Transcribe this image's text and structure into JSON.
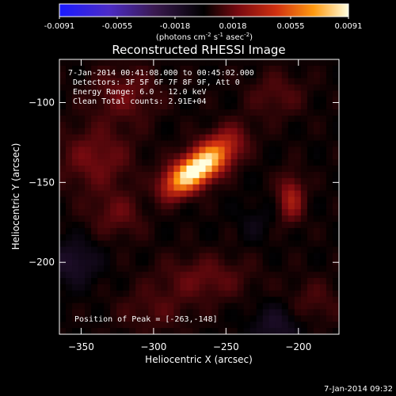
{
  "colorbar": {
    "ticks": [
      "-0.0091",
      "-0.0055",
      "-0.0018",
      "0.0018",
      "0.0055",
      "0.0091"
    ],
    "unit_prefix": "(photons cm",
    "unit_exp1": "-2",
    "unit_mid1": " s",
    "unit_exp2": "-1",
    "unit_mid2": " asec",
    "unit_exp3": "-2",
    "unit_suffix": ")",
    "stops": [
      {
        "offset": 0.0,
        "color": "#1a1aff"
      },
      {
        "offset": 0.17,
        "color": "#4c2cc8"
      },
      {
        "offset": 0.33,
        "color": "#3a1a50"
      },
      {
        "offset": 0.5,
        "color": "#000000"
      },
      {
        "offset": 0.62,
        "color": "#7a0a10"
      },
      {
        "offset": 0.75,
        "color": "#d03010"
      },
      {
        "offset": 0.88,
        "color": "#ff9a10"
      },
      {
        "offset": 1.0,
        "color": "#ffffe0"
      }
    ]
  },
  "annotations": {
    "time_range": "7-Jan-2014 00:41:08.000 to 00:45:02.000",
    "detectors": "Detectors: 3F 5F 6F 7F 8F 9F, Att 0",
    "energy": "Energy Range: 6.0 - 12.0 keV",
    "clean": "Clean     Total counts: 2.91E+04",
    "peak": "Position of Peak = [-263,-148]",
    "footer_date": "7-Jan-2014 09:32"
  },
  "chart_data": {
    "type": "heatmap",
    "title": "Reconstructed RHESSI Image",
    "xlabel": "Heliocentric X (arcsec)",
    "ylabel": "Heliocentric Y (arcsec)",
    "xlim": [
      -365,
      -172
    ],
    "ylim": [
      -245,
      -73
    ],
    "x_ticks": [
      -350,
      -300,
      -250,
      -200
    ],
    "y_ticks": [
      -100,
      -150,
      -200
    ],
    "x_tick_labels": [
      "−350",
      "−300",
      "−250",
      "−200"
    ],
    "y_tick_labels": [
      "−100",
      "−150",
      "−200"
    ],
    "value_range": [
      -0.0091,
      0.0091
    ],
    "peak": {
      "x": -263,
      "y": -148
    },
    "sources": [
      {
        "x": -272,
        "y": -143,
        "amp": 0.0091,
        "sigma_major": 17,
        "sigma_minor": 7,
        "angle_deg": 30
      },
      {
        "x": -255,
        "y": -128,
        "amp": 0.0022,
        "sigma_major": 14,
        "sigma_minor": 8,
        "angle_deg": 30
      },
      {
        "x": -205,
        "y": -160,
        "amp": 0.003,
        "sigma_major": 10,
        "sigma_minor": 6,
        "angle_deg": 90
      },
      {
        "x": -340,
        "y": -135,
        "amp": 0.0018,
        "sigma_major": 18,
        "sigma_minor": 14,
        "angle_deg": 0
      },
      {
        "x": -320,
        "y": -95,
        "amp": 0.0016,
        "sigma_major": 16,
        "sigma_minor": 12,
        "angle_deg": 0
      },
      {
        "x": -265,
        "y": -210,
        "amp": 0.0015,
        "sigma_major": 22,
        "sigma_minor": 10,
        "angle_deg": 0
      },
      {
        "x": -325,
        "y": -170,
        "amp": 0.0014,
        "sigma_major": 14,
        "sigma_minor": 10,
        "angle_deg": 0
      },
      {
        "x": -215,
        "y": -95,
        "amp": 0.0012,
        "sigma_major": 14,
        "sigma_minor": 10,
        "angle_deg": 0
      },
      {
        "x": -300,
        "y": -230,
        "amp": 0.001,
        "sigma_major": 18,
        "sigma_minor": 10,
        "angle_deg": 0
      },
      {
        "x": -190,
        "y": -225,
        "amp": 0.001,
        "sigma_major": 14,
        "sigma_minor": 10,
        "angle_deg": 0
      },
      {
        "x": -355,
        "y": -200,
        "amp": -0.0018,
        "sigma_major": 12,
        "sigma_minor": 10,
        "angle_deg": 0
      },
      {
        "x": -300,
        "y": -160,
        "amp": -0.001,
        "sigma_major": 8,
        "sigma_minor": 8,
        "angle_deg": 0
      },
      {
        "x": -230,
        "y": -175,
        "amp": -0.0008,
        "sigma_major": 8,
        "sigma_minor": 8,
        "angle_deg": 0
      },
      {
        "x": -215,
        "y": -240,
        "amp": -0.0016,
        "sigma_major": 12,
        "sigma_minor": 10,
        "angle_deg": 0
      }
    ]
  }
}
